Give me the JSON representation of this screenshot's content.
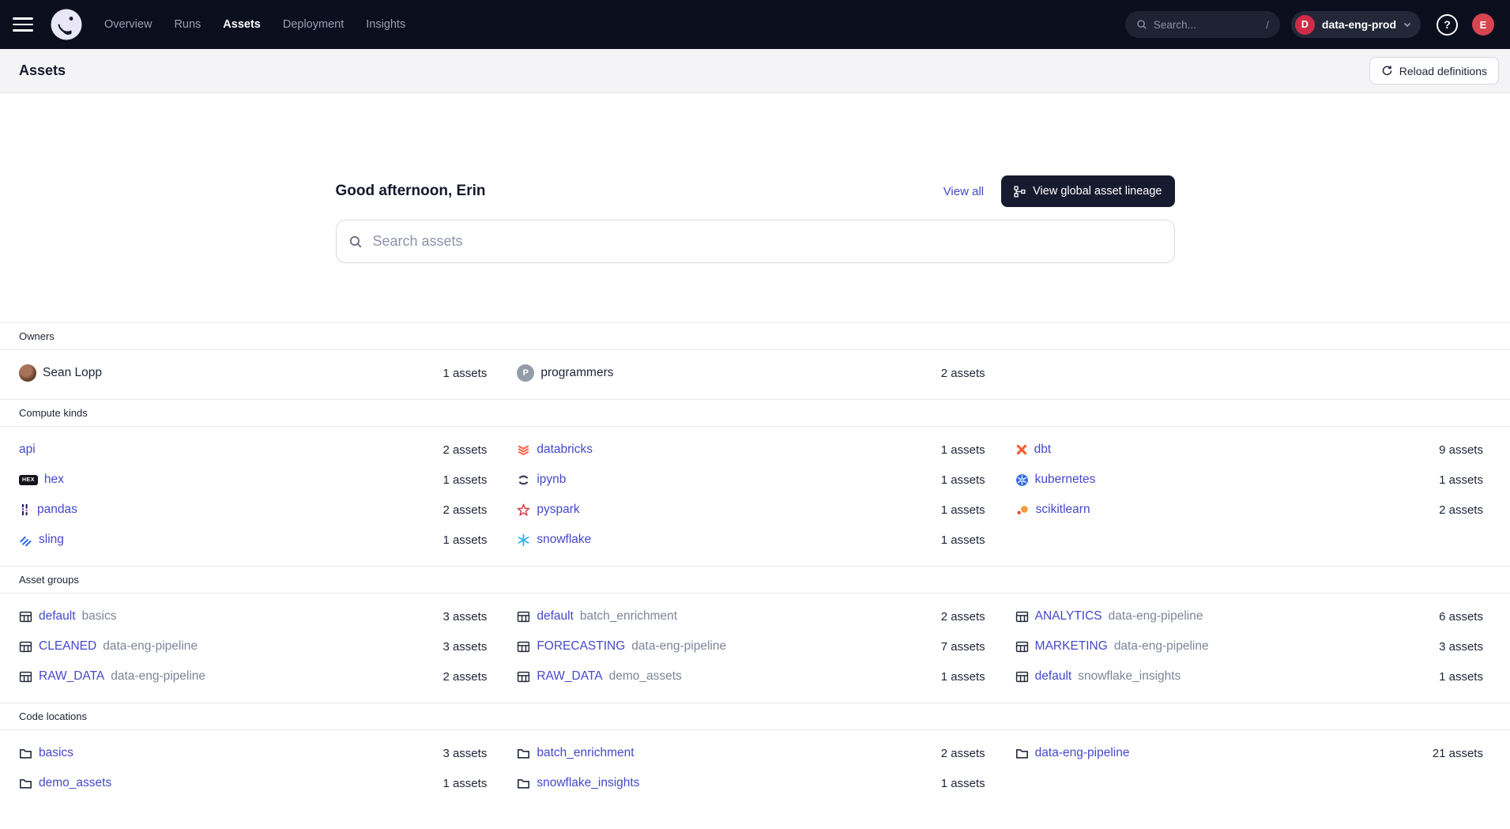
{
  "colors": {
    "link": "#4448C8",
    "navbar_bg": "#0B0E1C",
    "deploy_badge_red": "#CE2D4A",
    "avatar_red": "#D64550",
    "lineage_button_dark": "#171B30"
  },
  "navbar": {
    "nav_items": [
      {
        "label": "Overview",
        "active": false
      },
      {
        "label": "Runs",
        "active": false
      },
      {
        "label": "Assets",
        "active": true
      },
      {
        "label": "Deployment",
        "active": false
      },
      {
        "label": "Insights",
        "active": false
      }
    ],
    "search_placeholder": "Search...",
    "search_shortcut": "/",
    "deployment": {
      "initial": "D",
      "name": "data-eng-prod"
    },
    "help_glyph": "?",
    "avatar_initial": "E"
  },
  "page_header": {
    "title": "Assets",
    "reload_button": "Reload definitions"
  },
  "greeting": {
    "title": "Good afternoon, Erin",
    "view_all": "View all",
    "lineage_button": "View global asset lineage",
    "search_placeholder": "Search assets"
  },
  "sections": [
    {
      "label": "Owners",
      "style": "plain",
      "rows": [
        [
          {
            "icon": "user-photo",
            "name": "Sean Lopp",
            "count": "1 assets"
          },
          {
            "icon": "group-avatar",
            "name": "programmers",
            "count": "2 assets"
          },
          null
        ]
      ]
    },
    {
      "label": "Compute kinds",
      "style": "link",
      "rows": [
        [
          {
            "icon": null,
            "name": "api",
            "count": "2 assets"
          },
          {
            "icon": "databricks",
            "name": "databricks",
            "count": "1 assets"
          },
          {
            "icon": "dbt",
            "name": "dbt",
            "count": "9 assets"
          }
        ],
        [
          {
            "icon": "hex",
            "name": "hex",
            "count": "1 assets"
          },
          {
            "icon": "ipynb",
            "name": "ipynb",
            "count": "1 assets"
          },
          {
            "icon": "kubernetes",
            "name": "kubernetes",
            "count": "1 assets"
          }
        ],
        [
          {
            "icon": "pandas",
            "name": "pandas",
            "count": "2 assets"
          },
          {
            "icon": "pyspark",
            "name": "pyspark",
            "count": "1 assets"
          },
          {
            "icon": "scikitlearn",
            "name": "scikitlearn",
            "count": "2 assets"
          }
        ],
        [
          {
            "icon": "sling",
            "name": "sling",
            "count": "1 assets"
          },
          {
            "icon": "snowflake",
            "name": "snowflake",
            "count": "1 assets"
          },
          null
        ]
      ]
    },
    {
      "label": "Asset groups",
      "style": "link",
      "rows": [
        [
          {
            "icon": "table",
            "name": "default",
            "name2": "basics",
            "count": "3 assets"
          },
          {
            "icon": "table",
            "name": "default",
            "name2": "batch_enrichment",
            "count": "2 assets"
          },
          {
            "icon": "table",
            "name": "ANALYTICS",
            "name2": "data-eng-pipeline",
            "count": "6 assets"
          }
        ],
        [
          {
            "icon": "table",
            "name": "CLEANED",
            "name2": "data-eng-pipeline",
            "count": "3 assets"
          },
          {
            "icon": "table",
            "name": "FORECASTING",
            "name2": "data-eng-pipeline",
            "count": "7 assets"
          },
          {
            "icon": "table",
            "name": "MARKETING",
            "name2": "data-eng-pipeline",
            "count": "3 assets"
          }
        ],
        [
          {
            "icon": "table",
            "name": "RAW_DATA",
            "name2": "data-eng-pipeline",
            "count": "2 assets"
          },
          {
            "icon": "table",
            "name": "RAW_DATA",
            "name2": "demo_assets",
            "count": "1 assets"
          },
          {
            "icon": "table",
            "name": "default",
            "name2": "snowflake_insights",
            "count": "1 assets"
          }
        ]
      ]
    },
    {
      "label": "Code locations",
      "style": "link",
      "rows": [
        [
          {
            "icon": "folder",
            "name": "basics",
            "count": "3 assets"
          },
          {
            "icon": "folder",
            "name": "batch_enrichment",
            "count": "2 assets"
          },
          {
            "icon": "folder",
            "name": "data-eng-pipeline",
            "count": "21 assets"
          }
        ],
        [
          {
            "icon": "folder",
            "name": "demo_assets",
            "count": "1 assets"
          },
          {
            "icon": "folder",
            "name": "snowflake_insights",
            "count": "1 assets"
          },
          null
        ]
      ]
    }
  ]
}
